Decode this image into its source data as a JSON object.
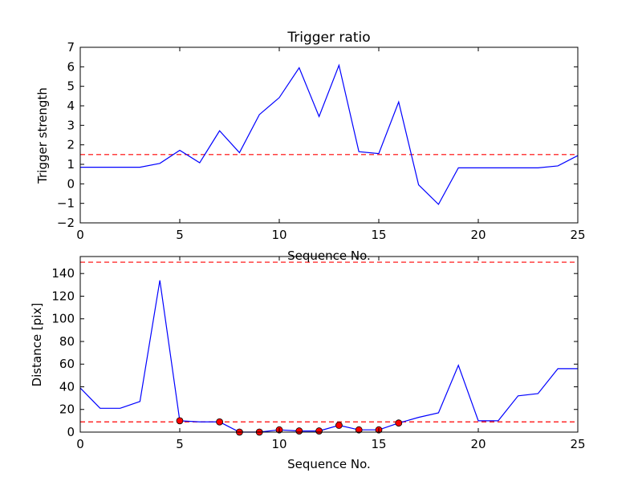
{
  "chart_data": [
    {
      "type": "line",
      "title": "Trigger ratio",
      "xlabel": "Sequence No.",
      "ylabel": "Trigger strength",
      "xlim": [
        0,
        25
      ],
      "ylim": [
        -2,
        7
      ],
      "xticks": [
        0,
        5,
        10,
        15,
        20,
        25
      ],
      "yticks": [
        -2,
        -1,
        0,
        1,
        2,
        3,
        4,
        5,
        6,
        7
      ],
      "grid": false,
      "series": [
        {
          "color": "#0000ff",
          "x": [
            0,
            1,
            2,
            3,
            4,
            5,
            6,
            7,
            8,
            9,
            10,
            11,
            12,
            13,
            14,
            15,
            16,
            17,
            18,
            19,
            20,
            21,
            22,
            23,
            24,
            25
          ],
          "values": [
            0.85,
            0.85,
            0.85,
            0.85,
            1.05,
            1.72,
            1.08,
            2.72,
            1.6,
            3.55,
            4.42,
            5.95,
            3.45,
            6.08,
            1.65,
            1.55,
            4.2,
            -0.05,
            -1.05,
            0.82,
            0.82,
            0.82,
            0.82,
            0.82,
            0.92,
            1.45
          ]
        }
      ],
      "hlines": [
        {
          "y": 1.5,
          "color": "#ff0000",
          "style": "dashed"
        }
      ]
    },
    {
      "type": "line",
      "title": "",
      "xlabel": "Sequence No.",
      "ylabel": "Distance [pix]",
      "xlim": [
        0,
        25
      ],
      "ylim": [
        0,
        155
      ],
      "xticks": [
        0,
        5,
        10,
        15,
        20,
        25
      ],
      "yticks": [
        0,
        20,
        40,
        60,
        80,
        100,
        120,
        140
      ],
      "grid": false,
      "series": [
        {
          "color": "#0000ff",
          "x": [
            0,
            1,
            2,
            3,
            4,
            5,
            6,
            7,
            8,
            9,
            10,
            11,
            12,
            13,
            14,
            15,
            16,
            17,
            18,
            19,
            20,
            21,
            22,
            23,
            24,
            25
          ],
          "values": [
            39,
            21,
            21,
            27,
            134,
            10,
            9,
            9,
            0,
            0,
            2,
            1,
            1,
            6,
            2,
            2,
            8,
            13,
            17,
            59,
            10,
            10,
            32,
            34,
            56,
            56
          ]
        }
      ],
      "markers": {
        "color": "#ff0000",
        "x": [
          5,
          7,
          8,
          9,
          10,
          11,
          12,
          13,
          14,
          15,
          16
        ],
        "values": [
          10,
          9,
          0,
          0,
          2,
          1,
          1,
          6,
          2,
          2,
          8
        ]
      },
      "hlines": [
        {
          "y": 150,
          "color": "#ff0000",
          "style": "dashed"
        },
        {
          "y": 9,
          "color": "#ff0000",
          "style": "dashed"
        }
      ]
    }
  ]
}
